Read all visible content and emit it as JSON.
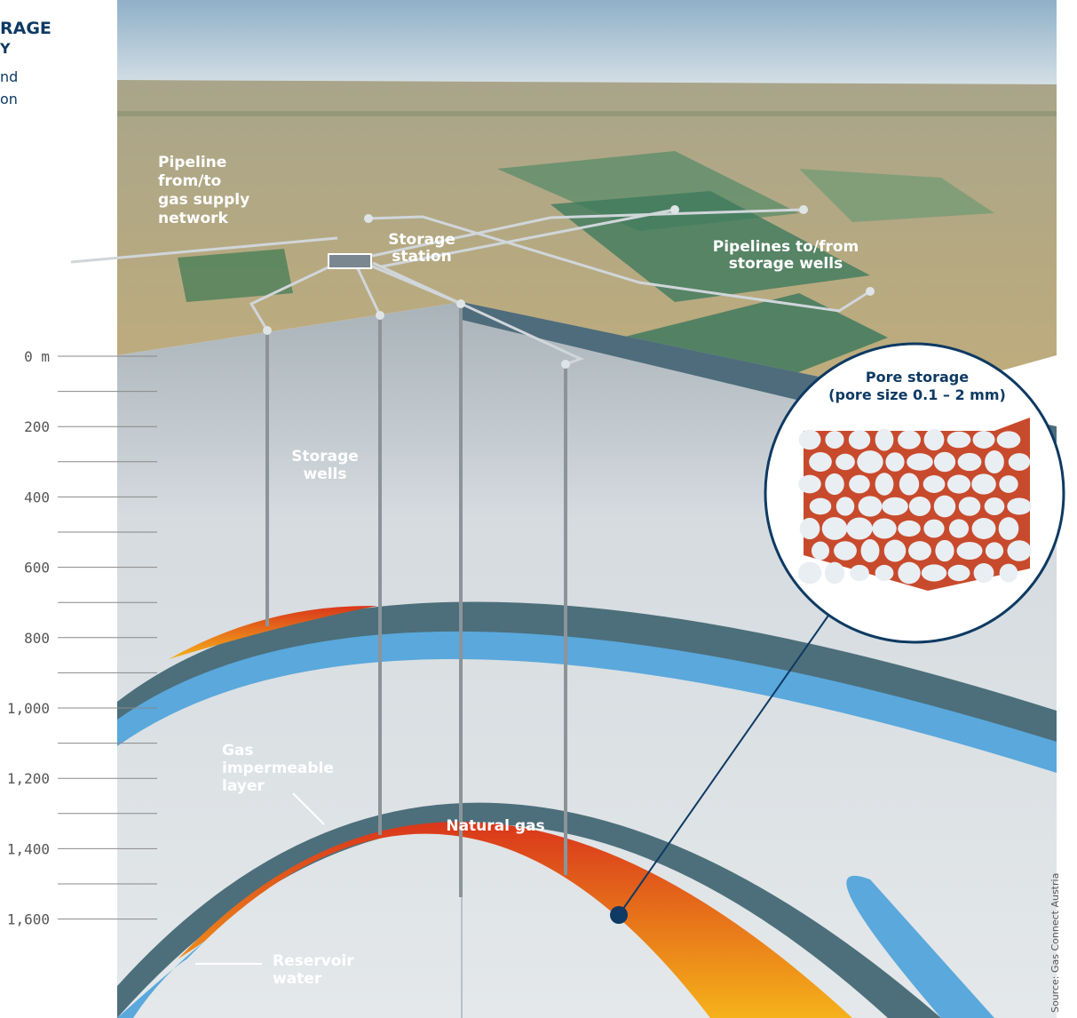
{
  "header": {
    "title": "RAGE",
    "title_line2": "Y",
    "intro": [
      "nd",
      "on"
    ]
  },
  "depth_scale": [
    "0 m",
    "200",
    "400",
    "600",
    "800",
    "1,000",
    "1,200",
    "1,400",
    "1,600"
  ],
  "labels": {
    "pipeline": [
      "Pipeline",
      "from/to",
      "gas supply",
      "network"
    ],
    "station": [
      "Storage",
      "station"
    ],
    "pipelines_wells": [
      "Pipelines to/from",
      "storage wells"
    ],
    "wells": [
      "Storage",
      "wells"
    ],
    "impermeable": [
      "Gas",
      "impermeable",
      "layer"
    ],
    "natural_gas": "Natural gas",
    "water": [
      "Reservoir",
      "water"
    ]
  },
  "inset": {
    "title": [
      "Pore storage",
      "(pore size 0.1 – 2 mm)"
    ]
  },
  "source": "Source: Gas Connect Austria"
}
